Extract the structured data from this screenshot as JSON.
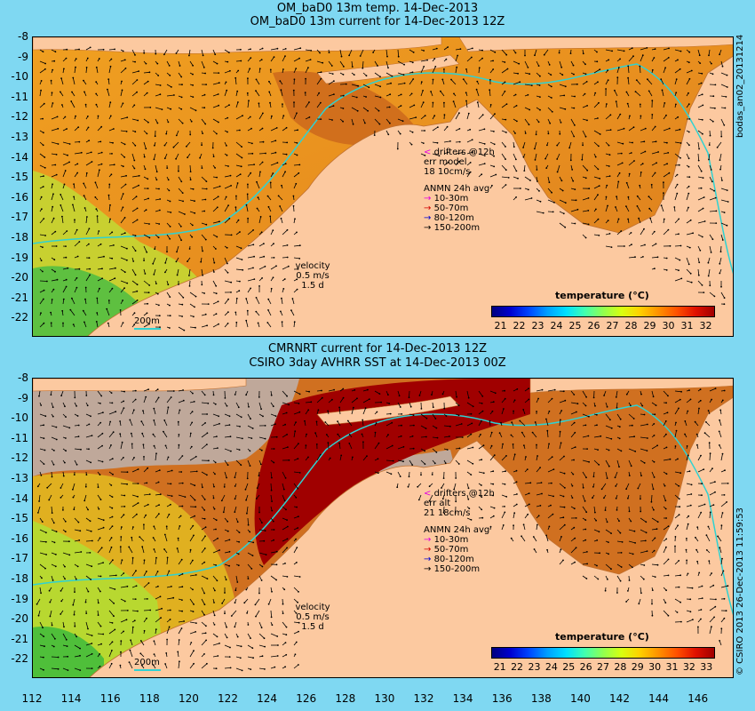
{
  "top": {
    "title_line1": "OM_baD0 13m temp. 14-Dec-2013",
    "title_line2": "OM_baD0 13m current for 14-Dec-2013 12Z",
    "side_label": "bodas_an02_20131214",
    "drifters": "drifters @12h",
    "err": "err model",
    "err_vals": "18 10cm/s",
    "anmn": "ANMN 24h avg",
    "depths": [
      "10-30m",
      "50-70m",
      "80-120m",
      "150-200m"
    ],
    "velocity": "velocity",
    "vel_val": "0.5 m/s",
    "vel_days": "1.5 d",
    "scale": "200m",
    "legend_title": "temperature (°C)",
    "cbar_ticks": [
      "21",
      "22",
      "23",
      "24",
      "25",
      "26",
      "27",
      "28",
      "29",
      "30",
      "31",
      "32"
    ]
  },
  "bottom": {
    "title_line1": "CMRNRT current for 14-Dec-2013 12Z",
    "title_line2": "CSIRO 3day AVHRR SST at 14-Dec-2013 00Z",
    "side_label": "© CSIRO 2013  26-Dec-2013 11:59:53",
    "drifters": "drifters @12h",
    "err": "err alt",
    "err_vals": "21 18cm/s",
    "anmn": "ANMN 24h avg",
    "depths": [
      "10-30m",
      "50-70m",
      "80-120m",
      "150-200m"
    ],
    "velocity": "velocity",
    "vel_val": "0.5 m/s",
    "vel_days": "1.5 d",
    "scale": "200m",
    "legend_title": "temperature (°C)",
    "cbar_ticks": [
      "21",
      "22",
      "23",
      "24",
      "25",
      "26",
      "27",
      "28",
      "29",
      "30",
      "31",
      "32",
      "33"
    ]
  },
  "lat_ticks": [
    "-8",
    "-9",
    "-10",
    "-11",
    "-12",
    "-13",
    "-14",
    "-15",
    "-16",
    "-17",
    "-18",
    "-19",
    "-20",
    "-21",
    "-22"
  ],
  "lon_ticks": [
    "112",
    "114",
    "116",
    "118",
    "120",
    "122",
    "124",
    "126",
    "128",
    "130",
    "132",
    "134",
    "136",
    "138",
    "140",
    "142",
    "144",
    "146"
  ],
  "colors": {
    "land": "#fcc9a0",
    "ocean_warm": "#e38a1a",
    "cloud": "#bfa89a",
    "bathy": "#2fd2d2",
    "bg": "#7fd8f2"
  },
  "colormap": [
    "#00007f",
    "#0000d0",
    "#0046ff",
    "#00a0ff",
    "#00e0ff",
    "#40ffb0",
    "#90ff50",
    "#d8ff10",
    "#ffd000",
    "#ff9000",
    "#ff5000",
    "#e01000",
    "#a00000"
  ]
}
